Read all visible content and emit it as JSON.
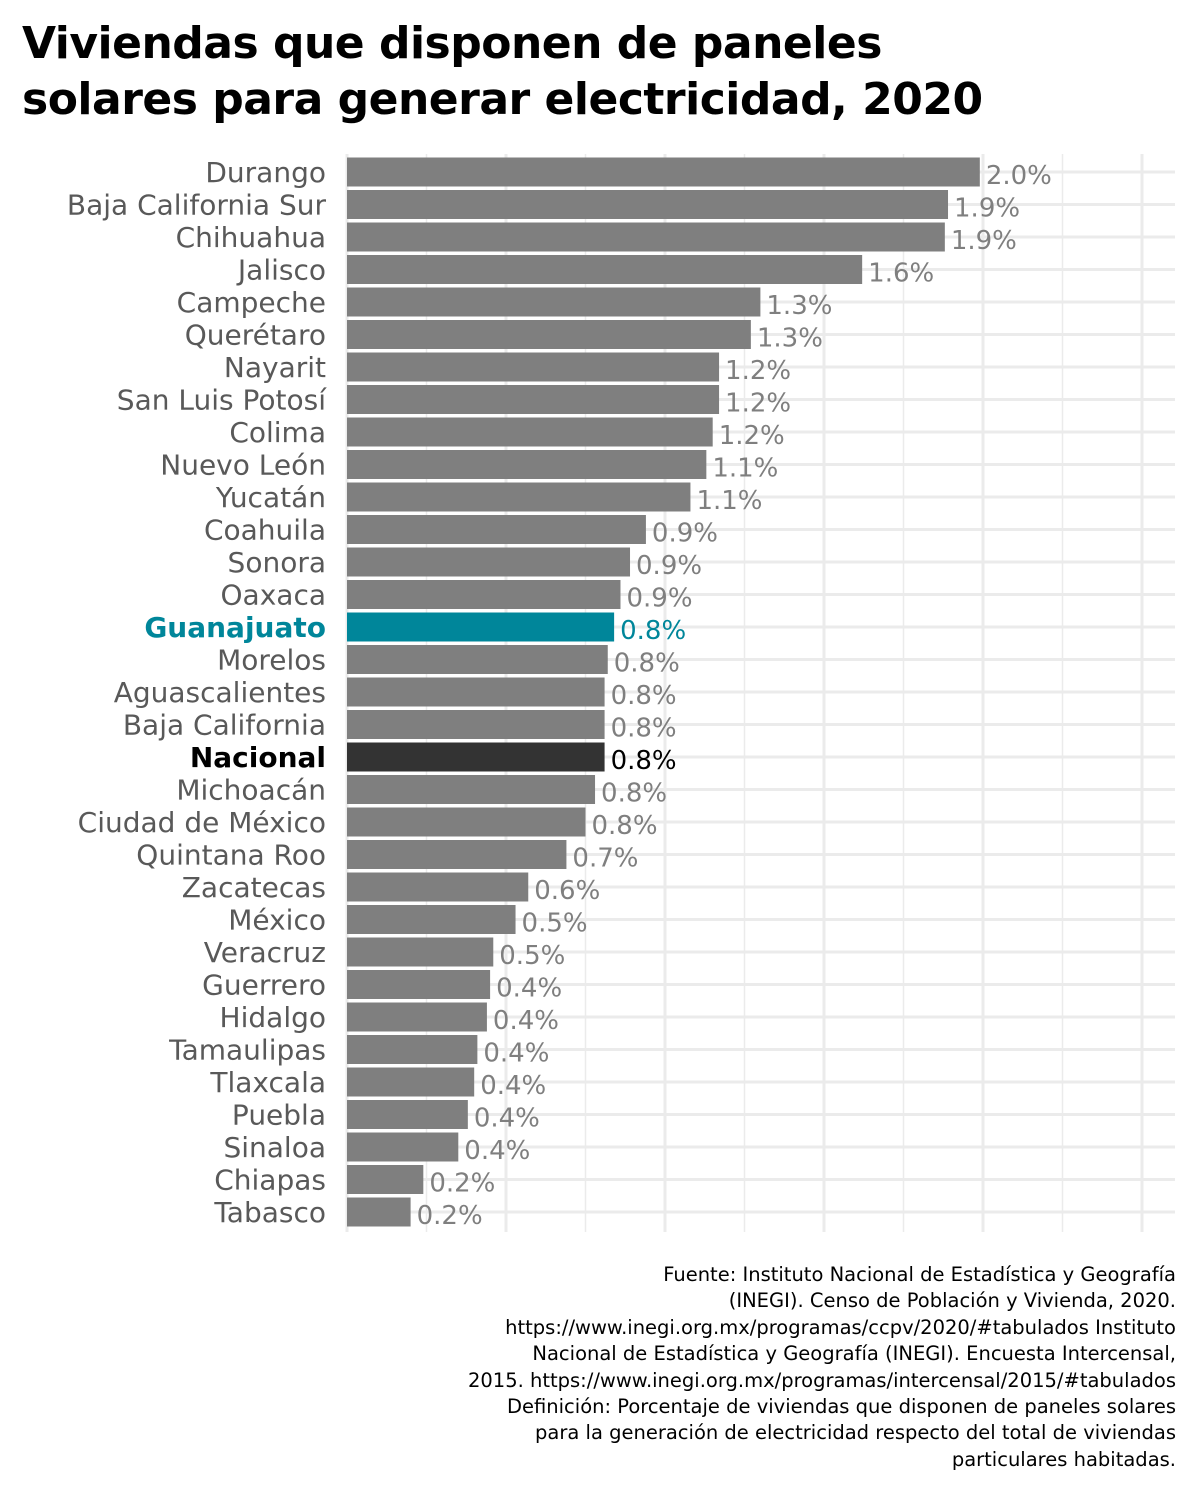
{
  "title_line1": "Viviendas que disponen de paneles",
  "title_line2": "solares para generar electricidad, 2020",
  "colors": {
    "default_bar": "#7f7f7f",
    "highlight_bar": "#00869a",
    "national_bar": "#333333",
    "default_label": "#595959",
    "value_label": "#7f7f7f",
    "grid": "#ebebeb"
  },
  "chart_data": {
    "type": "bar",
    "orientation": "horizontal",
    "unit": "%",
    "xlim": [
      0,
      2.5
    ],
    "grid": true,
    "categories": [
      "Durango",
      "Baja California Sur",
      "Chihuahua",
      "Jalisco",
      "Campeche",
      "Querétaro",
      "Nayarit",
      "San Luis Potosí",
      "Colima",
      "Nuevo León",
      "Yucatán",
      "Coahuila",
      "Sonora",
      "Oaxaca",
      "Guanajuato",
      "Morelos",
      "Aguascalientes",
      "Baja California",
      "Nacional",
      "Michoacán",
      "Ciudad de México",
      "Quintana Roo",
      "Zacatecas",
      "México",
      "Veracruz",
      "Guerrero",
      "Hidalgo",
      "Tamaulipas",
      "Tlaxcala",
      "Puebla",
      "Sinaloa",
      "Chiapas",
      "Tabasco"
    ],
    "values": [
      1.99,
      1.89,
      1.88,
      1.62,
      1.3,
      1.27,
      1.17,
      1.17,
      1.15,
      1.13,
      1.08,
      0.94,
      0.89,
      0.86,
      0.84,
      0.82,
      0.81,
      0.81,
      0.81,
      0.78,
      0.75,
      0.69,
      0.57,
      0.53,
      0.46,
      0.45,
      0.44,
      0.41,
      0.4,
      0.38,
      0.35,
      0.24,
      0.2
    ],
    "value_labels": [
      "2.0%",
      "1.9%",
      "1.9%",
      "1.6%",
      "1.3%",
      "1.3%",
      "1.2%",
      "1.2%",
      "1.2%",
      "1.1%",
      "1.1%",
      "0.9%",
      "0.9%",
      "0.9%",
      "0.8%",
      "0.8%",
      "0.8%",
      "0.8%",
      "0.8%",
      "0.8%",
      "0.8%",
      "0.7%",
      "0.6%",
      "0.5%",
      "0.5%",
      "0.4%",
      "0.4%",
      "0.4%",
      "0.4%",
      "0.4%",
      "0.4%",
      "0.2%",
      "0.2%"
    ],
    "highlight": "Guanajuato",
    "national": "Nacional"
  },
  "source_lines": [
    "Fuente: Instituto Nacional de Estadística y Geografía",
    "(INEGI). Censo de Población y Vivienda, 2020.",
    "https://www.inegi.org.mx/programas/ccpv/2020/#tabulados Instituto",
    "Nacional de Estadística y Geografía (INEGI). Encuesta Intercensal,",
    "2015. https://www.inegi.org.mx/programas/intercensal/2015/#tabulados",
    "Definición: Porcentaje de viviendas que disponen de paneles solares",
    "para la generación de electricidad respecto del total de viviendas",
    "particulares habitadas."
  ]
}
